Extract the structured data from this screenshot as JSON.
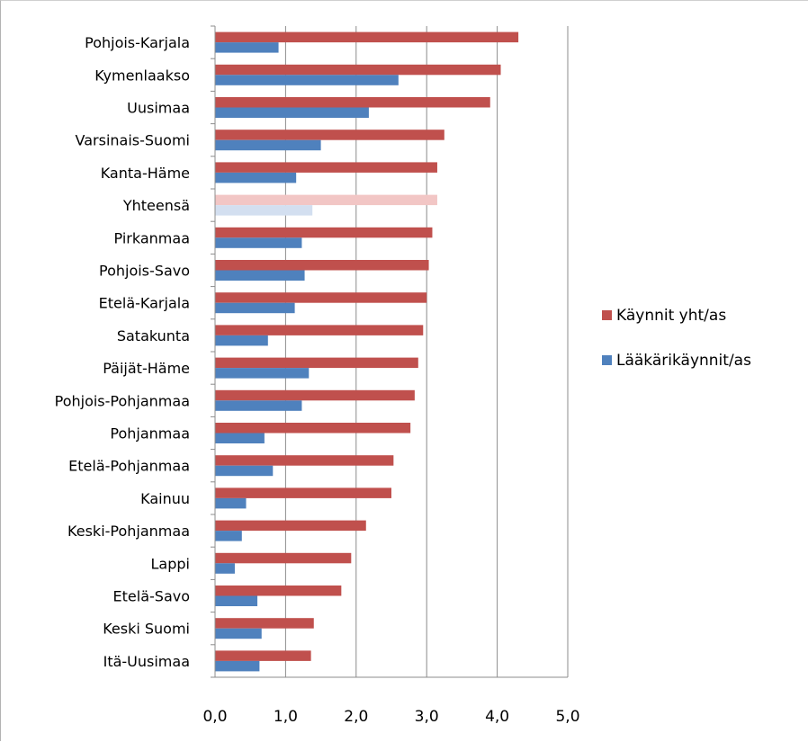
{
  "chart_data": {
    "type": "bar",
    "orientation": "horizontal",
    "categories": [
      "Pohjois-Karjala",
      "Kymenlaakso",
      "Uusimaa",
      "Varsinais-Suomi",
      "Kanta-Häme",
      "Yhteensä",
      "Pirkanmaa",
      "Pohjois-Savo",
      "Etelä-Karjala",
      "Satakunta",
      "Päijät-Häme",
      "Pohjois-Pohjanmaa",
      "Pohjanmaa",
      "Etelä-Pohjanmaa",
      "Kainuu",
      "Keski-Pohjanmaa",
      "Lappi",
      "Etelä-Savo",
      "Keski Suomi",
      "Itä-Uusimaa"
    ],
    "highlighted_category": "Yhteensä",
    "series": [
      {
        "name": "Käynnit yht/as",
        "color": "#c0504d",
        "highlight_color": "#f2c6c5",
        "values": [
          4.3,
          4.05,
          3.9,
          3.25,
          3.15,
          3.15,
          3.08,
          3.03,
          3.0,
          2.95,
          2.88,
          2.83,
          2.77,
          2.53,
          2.5,
          2.14,
          1.93,
          1.79,
          1.4,
          1.36
        ]
      },
      {
        "name": "Lääkärikäynnit/as",
        "color": "#4f81bd",
        "highlight_color": "#d3dff0",
        "values": [
          0.9,
          2.6,
          2.18,
          1.5,
          1.15,
          1.38,
          1.23,
          1.27,
          1.13,
          0.75,
          1.33,
          1.23,
          0.7,
          0.82,
          0.44,
          0.38,
          0.28,
          0.6,
          0.66,
          0.63
        ]
      }
    ],
    "xlim": [
      0,
      5
    ],
    "xticks": [
      "0,0",
      "1,0",
      "2,0",
      "3,0",
      "4,0",
      "5,0"
    ],
    "grid": "vertical",
    "legend_position": "right"
  }
}
